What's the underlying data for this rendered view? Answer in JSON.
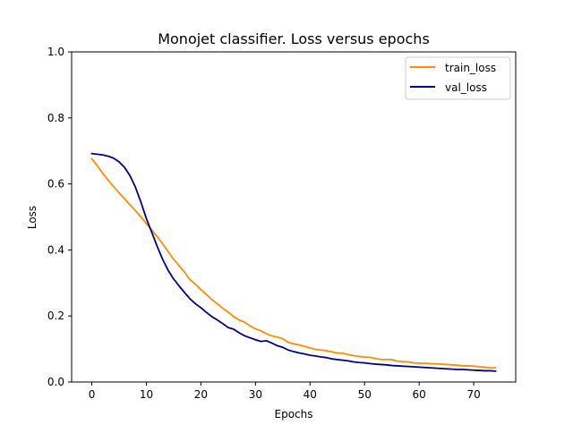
{
  "chart_data": {
    "type": "line",
    "title": "Monojet classifier. Loss versus epochs",
    "xlabel": "Epochs",
    "ylabel": "Loss",
    "xlim": [
      -3.7,
      77.7
    ],
    "ylim": [
      0.0,
      1.0
    ],
    "xticks": [
      0,
      10,
      20,
      30,
      40,
      50,
      60,
      70
    ],
    "yticks": [
      0.0,
      0.2,
      0.4,
      0.6,
      0.8,
      1.0
    ],
    "xtick_labels": [
      "0",
      "10",
      "20",
      "30",
      "40",
      "50",
      "60",
      "70"
    ],
    "ytick_labels": [
      "0.0",
      "0.2",
      "0.4",
      "0.6",
      "0.8",
      "1.0"
    ],
    "grid": false,
    "legend_position": "top-right",
    "series": [
      {
        "name": "train_loss",
        "color": "#ff8c00",
        "x": [
          0,
          1,
          2,
          3,
          4,
          5,
          6,
          7,
          8,
          9,
          10,
          11,
          12,
          13,
          14,
          15,
          16,
          17,
          18,
          19,
          20,
          21,
          22,
          23,
          24,
          25,
          26,
          27,
          28,
          29,
          30,
          31,
          32,
          33,
          34,
          35,
          36,
          37,
          38,
          39,
          40,
          41,
          42,
          43,
          44,
          45,
          46,
          47,
          48,
          49,
          50,
          51,
          52,
          53,
          54,
          55,
          56,
          57,
          58,
          59,
          60,
          61,
          62,
          63,
          64,
          65,
          66,
          67,
          68,
          69,
          70,
          71,
          72,
          73,
          74
        ],
        "values": [
          0.676,
          0.655,
          0.632,
          0.611,
          0.592,
          0.573,
          0.555,
          0.537,
          0.519,
          0.5,
          0.48,
          0.46,
          0.44,
          0.418,
          0.395,
          0.372,
          0.352,
          0.333,
          0.31,
          0.296,
          0.28,
          0.265,
          0.25,
          0.237,
          0.223,
          0.212,
          0.198,
          0.188,
          0.181,
          0.17,
          0.161,
          0.155,
          0.146,
          0.14,
          0.136,
          0.131,
          0.12,
          0.116,
          0.112,
          0.108,
          0.103,
          0.099,
          0.097,
          0.095,
          0.091,
          0.088,
          0.087,
          0.083,
          0.08,
          0.078,
          0.075,
          0.075,
          0.071,
          0.068,
          0.068,
          0.068,
          0.063,
          0.062,
          0.061,
          0.058,
          0.057,
          0.057,
          0.056,
          0.055,
          0.054,
          0.053,
          0.052,
          0.051,
          0.049,
          0.049,
          0.048,
          0.046,
          0.045,
          0.043,
          0.043
        ]
      },
      {
        "name": "val_loss",
        "color": "#00008b",
        "x": [
          0,
          1,
          2,
          3,
          4,
          5,
          6,
          7,
          8,
          9,
          10,
          11,
          12,
          13,
          14,
          15,
          16,
          17,
          18,
          19,
          20,
          21,
          22,
          23,
          24,
          25,
          26,
          27,
          28,
          29,
          30,
          31,
          32,
          33,
          34,
          35,
          36,
          37,
          38,
          39,
          40,
          41,
          42,
          43,
          44,
          45,
          46,
          47,
          48,
          49,
          50,
          51,
          52,
          53,
          54,
          55,
          56,
          57,
          58,
          59,
          60,
          61,
          62,
          63,
          64,
          65,
          66,
          67,
          68,
          69,
          70,
          71,
          72,
          73,
          74
        ],
        "values": [
          0.692,
          0.69,
          0.688,
          0.684,
          0.678,
          0.667,
          0.65,
          0.625,
          0.59,
          0.545,
          0.495,
          0.453,
          0.41,
          0.371,
          0.338,
          0.312,
          0.291,
          0.271,
          0.252,
          0.237,
          0.225,
          0.211,
          0.198,
          0.188,
          0.177,
          0.165,
          0.16,
          0.149,
          0.14,
          0.134,
          0.128,
          0.123,
          0.125,
          0.118,
          0.11,
          0.105,
          0.097,
          0.092,
          0.088,
          0.085,
          0.081,
          0.079,
          0.076,
          0.074,
          0.07,
          0.068,
          0.066,
          0.064,
          0.061,
          0.059,
          0.058,
          0.056,
          0.054,
          0.053,
          0.052,
          0.05,
          0.049,
          0.048,
          0.047,
          0.046,
          0.045,
          0.044,
          0.043,
          0.042,
          0.041,
          0.04,
          0.039,
          0.038,
          0.038,
          0.037,
          0.036,
          0.035,
          0.034,
          0.034,
          0.033
        ]
      }
    ]
  }
}
